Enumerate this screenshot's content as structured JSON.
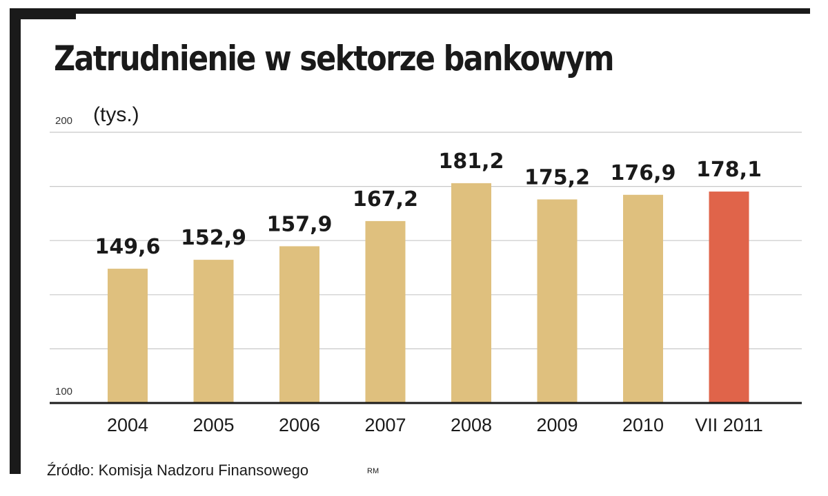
{
  "chart_data": {
    "type": "bar",
    "title": "Zatrudnienie w sektorze bankowym",
    "unit": "(tys.)",
    "categories": [
      "2004",
      "2005",
      "2006",
      "2007",
      "2008",
      "2009",
      "2010",
      "VII 2011"
    ],
    "values": [
      149.6,
      152.9,
      157.9,
      167.2,
      181.2,
      175.2,
      176.9,
      178.1
    ],
    "value_labels": [
      "149,6",
      "152,9",
      "157,9",
      "167,2",
      "181,2",
      "175,2",
      "176,9",
      "178,1"
    ],
    "ylim": [
      100,
      200
    ],
    "y_tick_labels": [
      "100",
      "200"
    ],
    "grid": true,
    "colors": {
      "bar": "#dfc07e",
      "highlight": "#e0644a",
      "highlight_category": "VII 2011",
      "grid": "#c8c8c8",
      "axis": "#1a1a1a"
    }
  },
  "footer": {
    "source": "Źródło: Komisja Nadzoru Finansowego",
    "credit": "RM"
  }
}
